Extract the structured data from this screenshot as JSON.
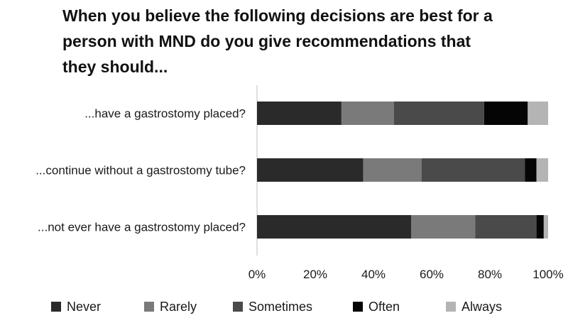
{
  "chart_data": {
    "type": "bar",
    "orientation": "horizontal",
    "stacked": true,
    "percent": true,
    "title": "When you believe the following decisions are best for a person with MND do you give recommendations that they should...",
    "title_lines": [
      "When you believe the following decisions are best for a",
      "person with MND do you give recommendations that",
      "they should..."
    ],
    "categories": [
      "...have a gastrostomy placed?",
      "...continue without a gastrostomy tube?",
      "...not ever have a gastrostomy placed?"
    ],
    "series": [
      {
        "name": "Never",
        "color": "#2a2a2a",
        "values": [
          29,
          36.5,
          53
        ]
      },
      {
        "name": "Rarely",
        "color": "#7a7a7a",
        "values": [
          18,
          20,
          22
        ]
      },
      {
        "name": "Sometimes",
        "color": "#4a4a4a",
        "values": [
          31,
          35.5,
          21
        ]
      },
      {
        "name": "Often",
        "color": "#050505",
        "values": [
          15,
          4,
          2.5
        ]
      },
      {
        "name": "Always",
        "color": "#b4b4b4",
        "values": [
          7,
          4,
          1.5
        ]
      }
    ],
    "x_ticks": [
      "0%",
      "20%",
      "40%",
      "60%",
      "80%",
      "100%"
    ],
    "xlim": [
      0,
      100
    ],
    "grid": false,
    "legend_position": "bottom"
  }
}
